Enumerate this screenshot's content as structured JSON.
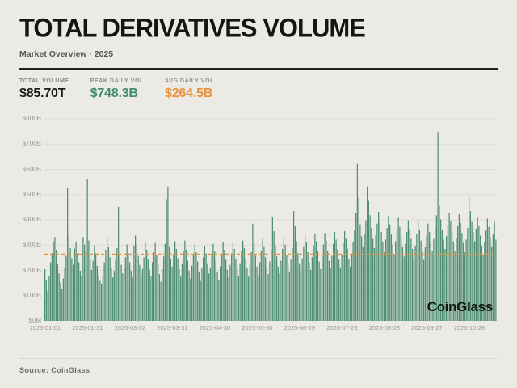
{
  "header": {
    "title": "TOTAL DERIVATIVES VOLUME",
    "subtitle": "Market Overview · 2025"
  },
  "stats": [
    {
      "label": "TOTAL VOLUME",
      "value": "$85.70T",
      "color": "#1A1A1A"
    },
    {
      "label": "PEAK DAILY VOL",
      "value": "$748.3B",
      "color": "#3E8C6D"
    },
    {
      "label": "AVG DAILY VOL",
      "value": "$264.5B",
      "color": "#E8913E"
    }
  ],
  "watermark": "CoinGlass",
  "footer": {
    "source": "Source: CoinGlass"
  },
  "chart_data": {
    "type": "bar",
    "title": "Total derivatives volume per day, 2025",
    "unit": "USD billions",
    "start_date": "2025-01-01",
    "x_tick_interval_days": 30,
    "x_tick_labels": [
      "2025-01-01",
      "2025-01-31",
      "2025-03-02",
      "2025-03-31",
      "2025-04-30",
      "2025-05-30",
      "2025-06-29",
      "2025-07-29",
      "2025-08-28",
      "2025-09-27",
      "2025-10-28"
    ],
    "y_tick_labels": [
      "$800B",
      "$700B",
      "$600B",
      "$500B",
      "$400B",
      "$300B",
      "$200B",
      "$100B",
      "$0M"
    ],
    "ylim": [
      0,
      800
    ],
    "grid": "horizontal",
    "grid_color": "#DEDDD5",
    "bar_color": "#4F8F73",
    "average_line": {
      "value": 264.5,
      "color": "#E8913E",
      "style": "dashed"
    },
    "peak_value": 748.3,
    "total_volume_trillions": 85.7,
    "values": [
      205,
      162,
      118,
      178,
      232,
      268,
      315,
      332,
      282,
      228,
      188,
      152,
      128,
      168,
      208,
      258,
      528,
      342,
      288,
      248,
      222,
      286,
      312,
      268,
      232,
      198,
      178,
      332,
      302,
      272,
      562,
      318,
      248,
      202,
      238,
      298,
      268,
      218,
      182,
      158,
      148,
      178,
      232,
      282,
      325,
      292,
      252,
      208,
      172,
      198,
      242,
      288,
      452,
      262,
      222,
      188,
      208,
      252,
      302,
      268,
      232,
      198,
      172,
      298,
      338,
      302,
      258,
      222,
      186,
      206,
      252,
      312,
      282,
      242,
      202,
      178,
      232,
      272,
      308,
      262,
      225,
      185,
      155,
      205,
      255,
      305,
      482,
      532,
      295,
      245,
      215,
      265,
      315,
      285,
      248,
      205,
      175,
      225,
      278,
      318,
      282,
      238,
      198,
      168,
      218,
      262,
      302,
      272,
      235,
      195,
      158,
      208,
      252,
      298,
      268,
      228,
      188,
      212,
      258,
      305,
      275,
      235,
      192,
      162,
      215,
      265,
      312,
      282,
      242,
      202,
      172,
      222,
      268,
      315,
      285,
      245,
      205,
      178,
      228,
      275,
      318,
      288,
      248,
      208,
      175,
      225,
      272,
      385,
      305,
      258,
      215,
      182,
      232,
      278,
      325,
      295,
      252,
      212,
      185,
      235,
      282,
      412,
      355,
      298,
      255,
      215,
      188,
      238,
      285,
      332,
      302,
      262,
      222,
      192,
      242,
      288,
      435,
      375,
      315,
      268,
      228,
      198,
      248,
      295,
      342,
      312,
      272,
      232,
      202,
      252,
      298,
      345,
      315,
      275,
      235,
      205,
      255,
      302,
      348,
      318,
      278,
      238,
      208,
      258,
      305,
      352,
      322,
      282,
      242,
      212,
      262,
      308,
      355,
      325,
      285,
      245,
      215,
      265,
      312,
      358,
      428,
      622,
      488,
      382,
      335,
      295,
      342,
      398,
      532,
      475,
      418,
      368,
      325,
      288,
      338,
      385,
      432,
      395,
      352,
      312,
      272,
      322,
      368,
      415,
      382,
      342,
      302,
      265,
      315,
      362,
      408,
      372,
      332,
      292,
      255,
      305,
      352,
      398,
      365,
      325,
      285,
      248,
      298,
      345,
      392,
      358,
      318,
      278,
      242,
      292,
      338,
      385,
      352,
      312,
      275,
      325,
      372,
      418,
      748,
      455,
      402,
      362,
      322,
      285,
      335,
      382,
      428,
      395,
      355,
      315,
      278,
      328,
      375,
      422,
      388,
      348,
      308,
      272,
      322,
      368,
      492,
      435,
      392,
      352,
      315,
      365,
      412,
      378,
      338,
      298,
      262,
      312,
      358,
      405,
      372,
      332,
      295,
      345,
      392,
      322
    ]
  }
}
